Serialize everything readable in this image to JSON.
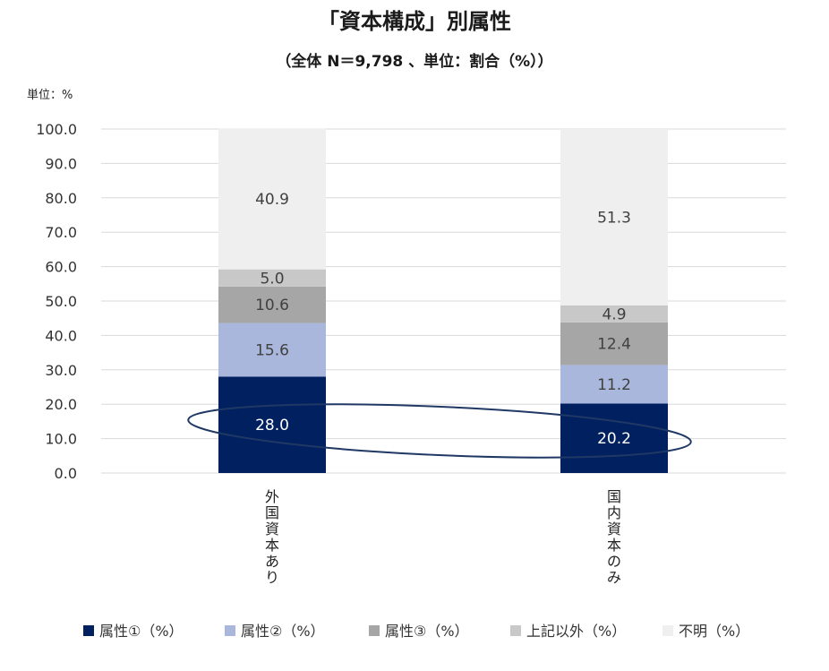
{
  "chart_data": {
    "type": "bar",
    "stacked": true,
    "title": "「資本構成」別属性",
    "subtitle": "（全体 N＝9,798 、単位：割合（%））",
    "unit_label": "単位：%",
    "categories": [
      "外国資本あり",
      "国内資本のみ"
    ],
    "series": [
      {
        "name": "属性①（%）",
        "values": [
          28.0,
          20.2
        ],
        "color": "#002060",
        "label_color": "#ffffff"
      },
      {
        "name": "属性②（%）",
        "values": [
          15.6,
          11.2
        ],
        "color": "#a9b7dd",
        "label_color": "#404040"
      },
      {
        "name": "属性③（%）",
        "values": [
          10.6,
          12.4
        ],
        "color": "#a6a6a6",
        "label_color": "#404040"
      },
      {
        "name": "上記以外（%）",
        "values": [
          5.0,
          4.9
        ],
        "color": "#c8c8c8",
        "label_color": "#404040"
      },
      {
        "name": "不明（%）",
        "values": [
          40.9,
          51.3
        ],
        "color": "#efefef",
        "label_color": "#404040"
      }
    ],
    "ylim": [
      0,
      100
    ],
    "yticks": [
      "0.0",
      "10.0",
      "20.0",
      "30.0",
      "40.0",
      "50.0",
      "60.0",
      "70.0",
      "80.0",
      "90.0",
      "100.0"
    ],
    "grid": true,
    "legend_position": "bottom",
    "annotation": "ellipse highlighting 属性① values",
    "colors": {
      "grid": "#d9d9d9",
      "ellipse": "#1f3864"
    }
  }
}
